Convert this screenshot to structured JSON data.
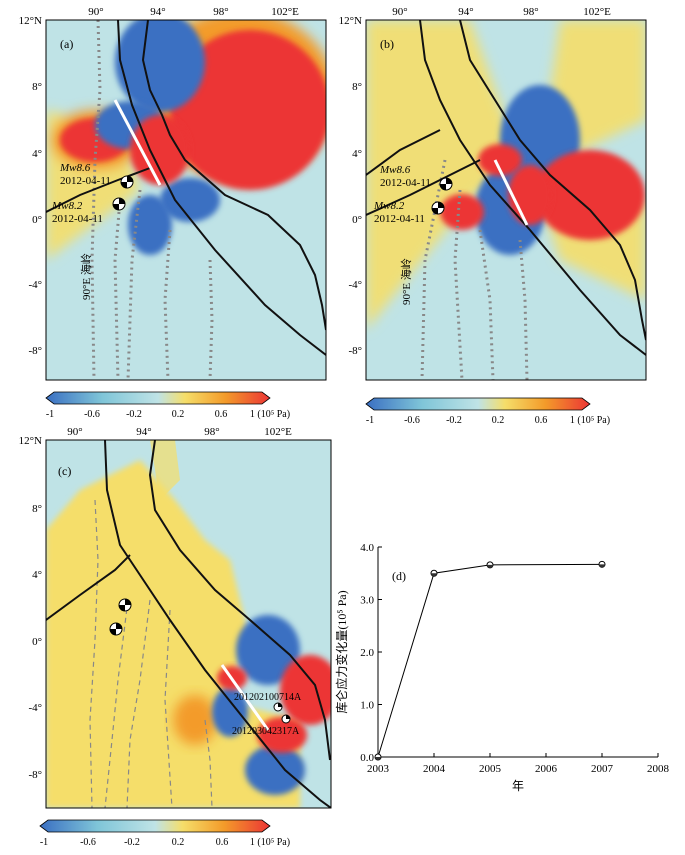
{
  "colors": {
    "neg_strong": "#3a6fc2",
    "neg_light": "#7fc5d8",
    "background": "#bfe3e6",
    "pos_light": "#f5de6a",
    "pos_mid": "#f39b2a",
    "pos_strong": "#ec3535",
    "coast": "#111111",
    "ridge": "#888888",
    "rupture": "#ffffff"
  },
  "panels": [
    {
      "label": "(a)",
      "lon_ticks": [
        "90°",
        "94°",
        "98°",
        "102°E"
      ],
      "lat_ticks": [
        "12°N",
        "8°",
        "4°",
        "0°",
        "-4°",
        "-8°"
      ],
      "ridge_label": "90°E 海岭",
      "events": [
        {
          "name": "Mw8.6",
          "date": "2012-04-11"
        },
        {
          "name": "Mw8.2",
          "date": "2012-04-11"
        }
      ],
      "colorbar": {
        "ticks": [
          "-1",
          "-0.6",
          "-0.2",
          "0.2",
          "0.6",
          "1 (10⁵ Pa)"
        ]
      }
    },
    {
      "label": "(b)",
      "lon_ticks": [
        "90°",
        "94°",
        "98°",
        "102°E"
      ],
      "lat_ticks": [
        "12°N",
        "8°",
        "4°",
        "0°",
        "-4°",
        "-8°"
      ],
      "ridge_label": "90°E 海岭",
      "events": [
        {
          "name": "Mw8.6",
          "date": "2012-04-11"
        },
        {
          "name": "Mw8.2",
          "date": "2012-04-11"
        }
      ],
      "colorbar": {
        "ticks": [
          "-1",
          "-0.6",
          "-0.2",
          "0.2",
          "0.6",
          "1 (10⁵ Pa)"
        ]
      }
    },
    {
      "label": "(c)",
      "lon_ticks": [
        "90°",
        "94°",
        "98°",
        "102°E"
      ],
      "lat_ticks": [
        "12°N",
        "8°",
        "4°",
        "0°",
        "-4°",
        "-8°"
      ],
      "events": [
        {
          "name": "201202100714A"
        },
        {
          "name": "201203042317A"
        }
      ],
      "colorbar": {
        "ticks": [
          "-1",
          "-0.6",
          "-0.2",
          "0.2",
          "0.6",
          "1 (10⁵ Pa)"
        ]
      }
    }
  ],
  "chart_data": {
    "type": "line",
    "label": "(d)",
    "title": "",
    "xlabel": "年",
    "ylabel": "库仑应力变化量(10⁵ Pa)",
    "x": [
      2003,
      2004,
      2005,
      2007
    ],
    "y": [
      0.0,
      3.5,
      3.66,
      3.67
    ],
    "xlim": [
      2003,
      2008
    ],
    "ylim": [
      0.0,
      4.0
    ],
    "xticks": [
      "2003",
      "2004",
      "2005",
      "2006",
      "2007",
      "2008"
    ],
    "yticks": [
      "0.0",
      "1.0",
      "2.0",
      "3.0",
      "4.0"
    ],
    "grid": false
  }
}
